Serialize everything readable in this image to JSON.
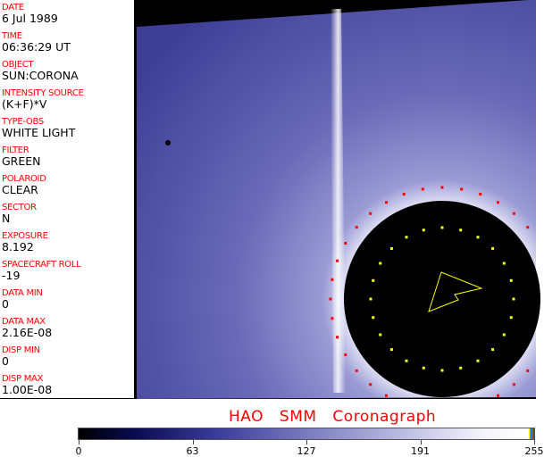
{
  "fields": [
    {
      "label": "DATE",
      "value": "6 Jul 1989"
    },
    {
      "label": "TIME",
      "value": "06:36:29 UT"
    },
    {
      "label": "OBJECT",
      "value": "SUN:CORONA"
    },
    {
      "label": "INTENSITY SOURCE",
      "value": "(K+F)*V"
    },
    {
      "label": "TYPE-OBS",
      "value": "WHITE LIGHT"
    },
    {
      "label": "FILTER",
      "value": "GREEN"
    },
    {
      "label": "POLAROID",
      "value": "CLEAR"
    },
    {
      "label": "SECTOR",
      "value": "N"
    },
    {
      "label": "EXPOSURE",
      "value": "8.192"
    },
    {
      "label": "SPACECRAFT ROLL",
      "value": "-19"
    },
    {
      "label": "DATA MIN",
      "value": "0"
    },
    {
      "label": "DATA MAX",
      "value": "2.16E-08"
    },
    {
      "label": "DISP MIN",
      "value": "0"
    },
    {
      "label": "DISP MAX",
      "value": "1.00E-08"
    }
  ],
  "title": "HAO SMM Coronagraph",
  "colorbar": {
    "ticks": [
      "0",
      "63",
      "127",
      "191",
      "255"
    ],
    "colors": [
      "#000000",
      "#0a0a50",
      "#3a3a9a",
      "#7a7ac0",
      "#b8b8e0",
      "#ffffff"
    ]
  }
}
